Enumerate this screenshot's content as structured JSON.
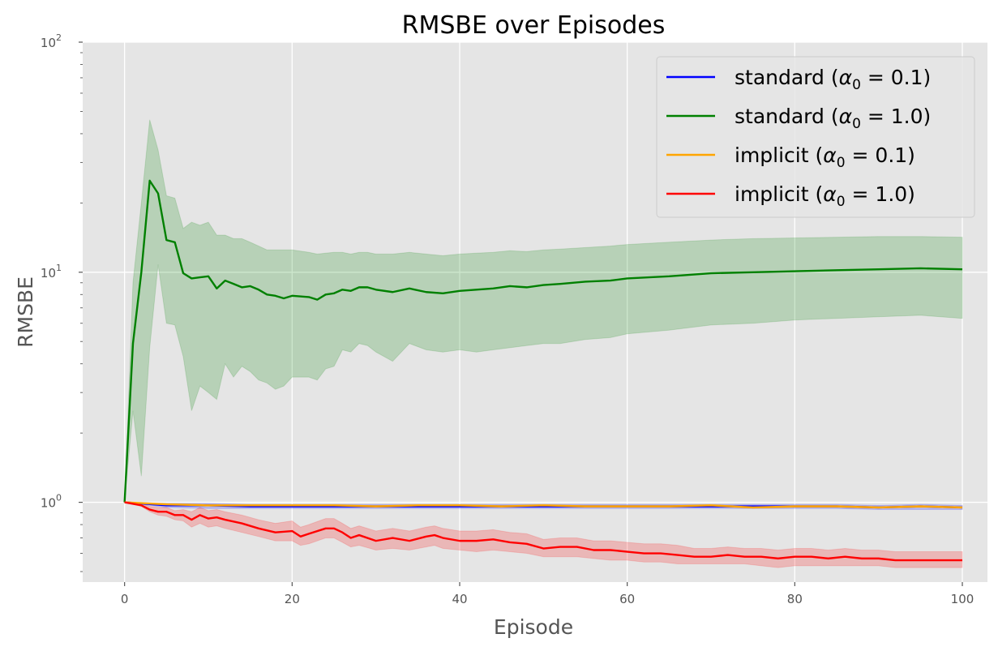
{
  "chart_data": {
    "type": "line",
    "title": "RMSBE over Episodes",
    "xlabel": "Episode",
    "ylabel": "RMSBE",
    "xlim": [
      -5,
      103
    ],
    "ylim": [
      0.45,
      100
    ],
    "yscale": "log",
    "grid": true,
    "legend_position": "top-right",
    "x_ticks": [
      {
        "value": 0,
        "label": "0"
      },
      {
        "value": 20,
        "label": "20"
      },
      {
        "value": 40,
        "label": "40"
      },
      {
        "value": 60,
        "label": "60"
      },
      {
        "value": 80,
        "label": "80"
      },
      {
        "value": 100,
        "label": "100"
      }
    ],
    "y_ticks": [
      {
        "value": 1,
        "base": "10",
        "exp": "0"
      },
      {
        "value": 10,
        "base": "10",
        "exp": "1"
      },
      {
        "value": 100,
        "base": "10",
        "exp": "2"
      }
    ],
    "series": [
      {
        "name": "standard (α₀ = 0.1)",
        "legend_prefix": "standard (",
        "legend_greek": "α",
        "legend_sub": "0",
        "legend_suffix": " = 0.1)",
        "color": "#0000ff",
        "x": [
          0,
          5,
          10,
          15,
          20,
          25,
          30,
          35,
          40,
          45,
          50,
          55,
          60,
          65,
          70,
          75,
          80,
          85,
          90,
          95,
          100
        ],
        "y": [
          1.0,
          0.97,
          0.97,
          0.96,
          0.96,
          0.96,
          0.96,
          0.96,
          0.96,
          0.96,
          0.96,
          0.96,
          0.96,
          0.96,
          0.96,
          0.96,
          0.96,
          0.96,
          0.95,
          0.96,
          0.95
        ],
        "band_low": [
          1.0,
          0.95,
          0.94,
          0.94,
          0.94,
          0.94,
          0.94,
          0.94,
          0.94,
          0.94,
          0.94,
          0.94,
          0.94,
          0.94,
          0.94,
          0.94,
          0.94,
          0.94,
          0.93,
          0.93,
          0.93
        ],
        "band_high": [
          1.0,
          0.99,
          0.99,
          0.98,
          0.98,
          0.98,
          0.98,
          0.98,
          0.98,
          0.98,
          0.98,
          0.98,
          0.98,
          0.98,
          0.98,
          0.98,
          0.98,
          0.98,
          0.97,
          0.98,
          0.97
        ]
      },
      {
        "name": "standard (α₀ = 1.0)",
        "legend_prefix": "standard (",
        "legend_greek": "α",
        "legend_sub": "0",
        "legend_suffix": " = 1.0)",
        "color": "#008000",
        "x": [
          0,
          1,
          2,
          3,
          4,
          5,
          6,
          7,
          8,
          9,
          10,
          11,
          12,
          13,
          14,
          15,
          16,
          17,
          18,
          19,
          20,
          22,
          23,
          24,
          25,
          26,
          27,
          28,
          29,
          30,
          32,
          34,
          36,
          38,
          40,
          42,
          44,
          46,
          48,
          50,
          52,
          55,
          58,
          60,
          65,
          70,
          75,
          80,
          85,
          90,
          95,
          100
        ],
        "y": [
          1.0,
          4.9,
          10.0,
          25.0,
          22.0,
          13.8,
          13.5,
          9.9,
          9.4,
          9.5,
          9.6,
          8.5,
          9.2,
          8.9,
          8.6,
          8.7,
          8.4,
          8.0,
          7.9,
          7.7,
          7.9,
          7.8,
          7.6,
          8.0,
          8.1,
          8.4,
          8.3,
          8.6,
          8.6,
          8.4,
          8.2,
          8.5,
          8.2,
          8.1,
          8.3,
          8.4,
          8.5,
          8.7,
          8.6,
          8.8,
          8.9,
          9.1,
          9.2,
          9.4,
          9.6,
          9.9,
          10.0,
          10.1,
          10.2,
          10.3,
          10.4,
          10.3
        ],
        "band_low": [
          1.0,
          2.5,
          1.3,
          4.7,
          10.8,
          6.0,
          5.9,
          4.3,
          2.5,
          3.2,
          3.0,
          2.8,
          4.0,
          3.5,
          3.9,
          3.7,
          3.4,
          3.3,
          3.1,
          3.2,
          3.5,
          3.5,
          3.4,
          3.8,
          3.9,
          4.6,
          4.5,
          4.9,
          4.8,
          4.5,
          4.1,
          4.9,
          4.6,
          4.5,
          4.6,
          4.5,
          4.6,
          4.7,
          4.8,
          4.9,
          4.9,
          5.1,
          5.2,
          5.4,
          5.6,
          5.9,
          6.0,
          6.2,
          6.3,
          6.4,
          6.5,
          6.3
        ],
        "band_high": [
          1.0,
          9.0,
          20.0,
          46.0,
          34.0,
          21.5,
          21.0,
          15.5,
          16.5,
          16.0,
          16.5,
          14.5,
          14.5,
          14.0,
          14.0,
          13.5,
          13.0,
          12.5,
          12.5,
          12.5,
          12.5,
          12.2,
          12.0,
          12.1,
          12.2,
          12.2,
          12.0,
          12.2,
          12.2,
          12.0,
          12.0,
          12.2,
          12.0,
          11.8,
          12.0,
          12.1,
          12.2,
          12.4,
          12.3,
          12.5,
          12.6,
          12.8,
          13.0,
          13.2,
          13.5,
          13.8,
          14.0,
          14.1,
          14.2,
          14.3,
          14.3,
          14.2
        ]
      },
      {
        "name": "implicit (α₀ = 0.1)",
        "legend_prefix": "implicit (",
        "legend_greek": "α",
        "legend_sub": "0",
        "legend_suffix": " = 0.1)",
        "color": "#ffa500",
        "x": [
          0,
          5,
          10,
          15,
          20,
          25,
          30,
          35,
          40,
          45,
          50,
          55,
          60,
          65,
          70,
          75,
          80,
          85,
          90,
          95,
          100
        ],
        "y": [
          1.0,
          0.98,
          0.97,
          0.97,
          0.97,
          0.97,
          0.96,
          0.97,
          0.97,
          0.96,
          0.97,
          0.96,
          0.96,
          0.96,
          0.97,
          0.95,
          0.96,
          0.96,
          0.95,
          0.96,
          0.95
        ],
        "band_low": [
          1.0,
          0.97,
          0.96,
          0.96,
          0.96,
          0.96,
          0.95,
          0.96,
          0.96,
          0.95,
          0.96,
          0.95,
          0.95,
          0.95,
          0.96,
          0.94,
          0.95,
          0.95,
          0.94,
          0.95,
          0.94
        ],
        "band_high": [
          1.0,
          0.99,
          0.98,
          0.98,
          0.98,
          0.98,
          0.97,
          0.98,
          0.98,
          0.97,
          0.98,
          0.97,
          0.97,
          0.97,
          0.98,
          0.96,
          0.97,
          0.97,
          0.96,
          0.97,
          0.96
        ]
      },
      {
        "name": "implicit (α₀ = 1.0)",
        "legend_prefix": "implicit (",
        "legend_greek": "α",
        "legend_sub": "0",
        "legend_suffix": " = 1.0)",
        "color": "#ff0000",
        "x": [
          0,
          2,
          3,
          4,
          5,
          6,
          7,
          8,
          9,
          10,
          11,
          12,
          14,
          16,
          18,
          20,
          21,
          22,
          24,
          25,
          26,
          27,
          28,
          30,
          32,
          34,
          36,
          37,
          38,
          40,
          42,
          44,
          46,
          48,
          50,
          52,
          54,
          56,
          58,
          60,
          62,
          64,
          66,
          68,
          70,
          72,
          74,
          76,
          78,
          80,
          82,
          84,
          86,
          88,
          90,
          92,
          94,
          96,
          98,
          100
        ],
        "y": [
          1.0,
          0.97,
          0.93,
          0.91,
          0.91,
          0.88,
          0.88,
          0.84,
          0.88,
          0.85,
          0.86,
          0.84,
          0.81,
          0.77,
          0.74,
          0.75,
          0.71,
          0.73,
          0.77,
          0.77,
          0.74,
          0.7,
          0.72,
          0.68,
          0.7,
          0.68,
          0.71,
          0.72,
          0.7,
          0.68,
          0.68,
          0.69,
          0.67,
          0.66,
          0.63,
          0.64,
          0.64,
          0.62,
          0.62,
          0.61,
          0.6,
          0.6,
          0.59,
          0.58,
          0.58,
          0.59,
          0.58,
          0.58,
          0.57,
          0.58,
          0.58,
          0.57,
          0.58,
          0.57,
          0.57,
          0.56,
          0.56,
          0.56,
          0.56,
          0.56
        ],
        "band_low": [
          1.0,
          0.96,
          0.91,
          0.88,
          0.87,
          0.84,
          0.83,
          0.78,
          0.81,
          0.78,
          0.79,
          0.77,
          0.74,
          0.71,
          0.68,
          0.68,
          0.65,
          0.66,
          0.7,
          0.7,
          0.67,
          0.64,
          0.65,
          0.62,
          0.63,
          0.62,
          0.64,
          0.65,
          0.63,
          0.62,
          0.61,
          0.62,
          0.61,
          0.6,
          0.58,
          0.58,
          0.58,
          0.57,
          0.56,
          0.56,
          0.55,
          0.55,
          0.54,
          0.54,
          0.54,
          0.54,
          0.54,
          0.53,
          0.52,
          0.53,
          0.53,
          0.53,
          0.53,
          0.53,
          0.53,
          0.52,
          0.52,
          0.52,
          0.52,
          0.52
        ],
        "band_high": [
          1.0,
          0.99,
          0.96,
          0.95,
          0.95,
          0.92,
          0.93,
          0.91,
          0.95,
          0.92,
          0.93,
          0.91,
          0.88,
          0.84,
          0.81,
          0.83,
          0.78,
          0.8,
          0.85,
          0.85,
          0.81,
          0.77,
          0.79,
          0.75,
          0.77,
          0.75,
          0.78,
          0.79,
          0.77,
          0.75,
          0.75,
          0.76,
          0.74,
          0.73,
          0.69,
          0.7,
          0.7,
          0.68,
          0.68,
          0.67,
          0.66,
          0.66,
          0.65,
          0.63,
          0.63,
          0.64,
          0.63,
          0.63,
          0.62,
          0.63,
          0.63,
          0.62,
          0.63,
          0.62,
          0.62,
          0.61,
          0.61,
          0.61,
          0.61,
          0.61
        ]
      }
    ]
  }
}
